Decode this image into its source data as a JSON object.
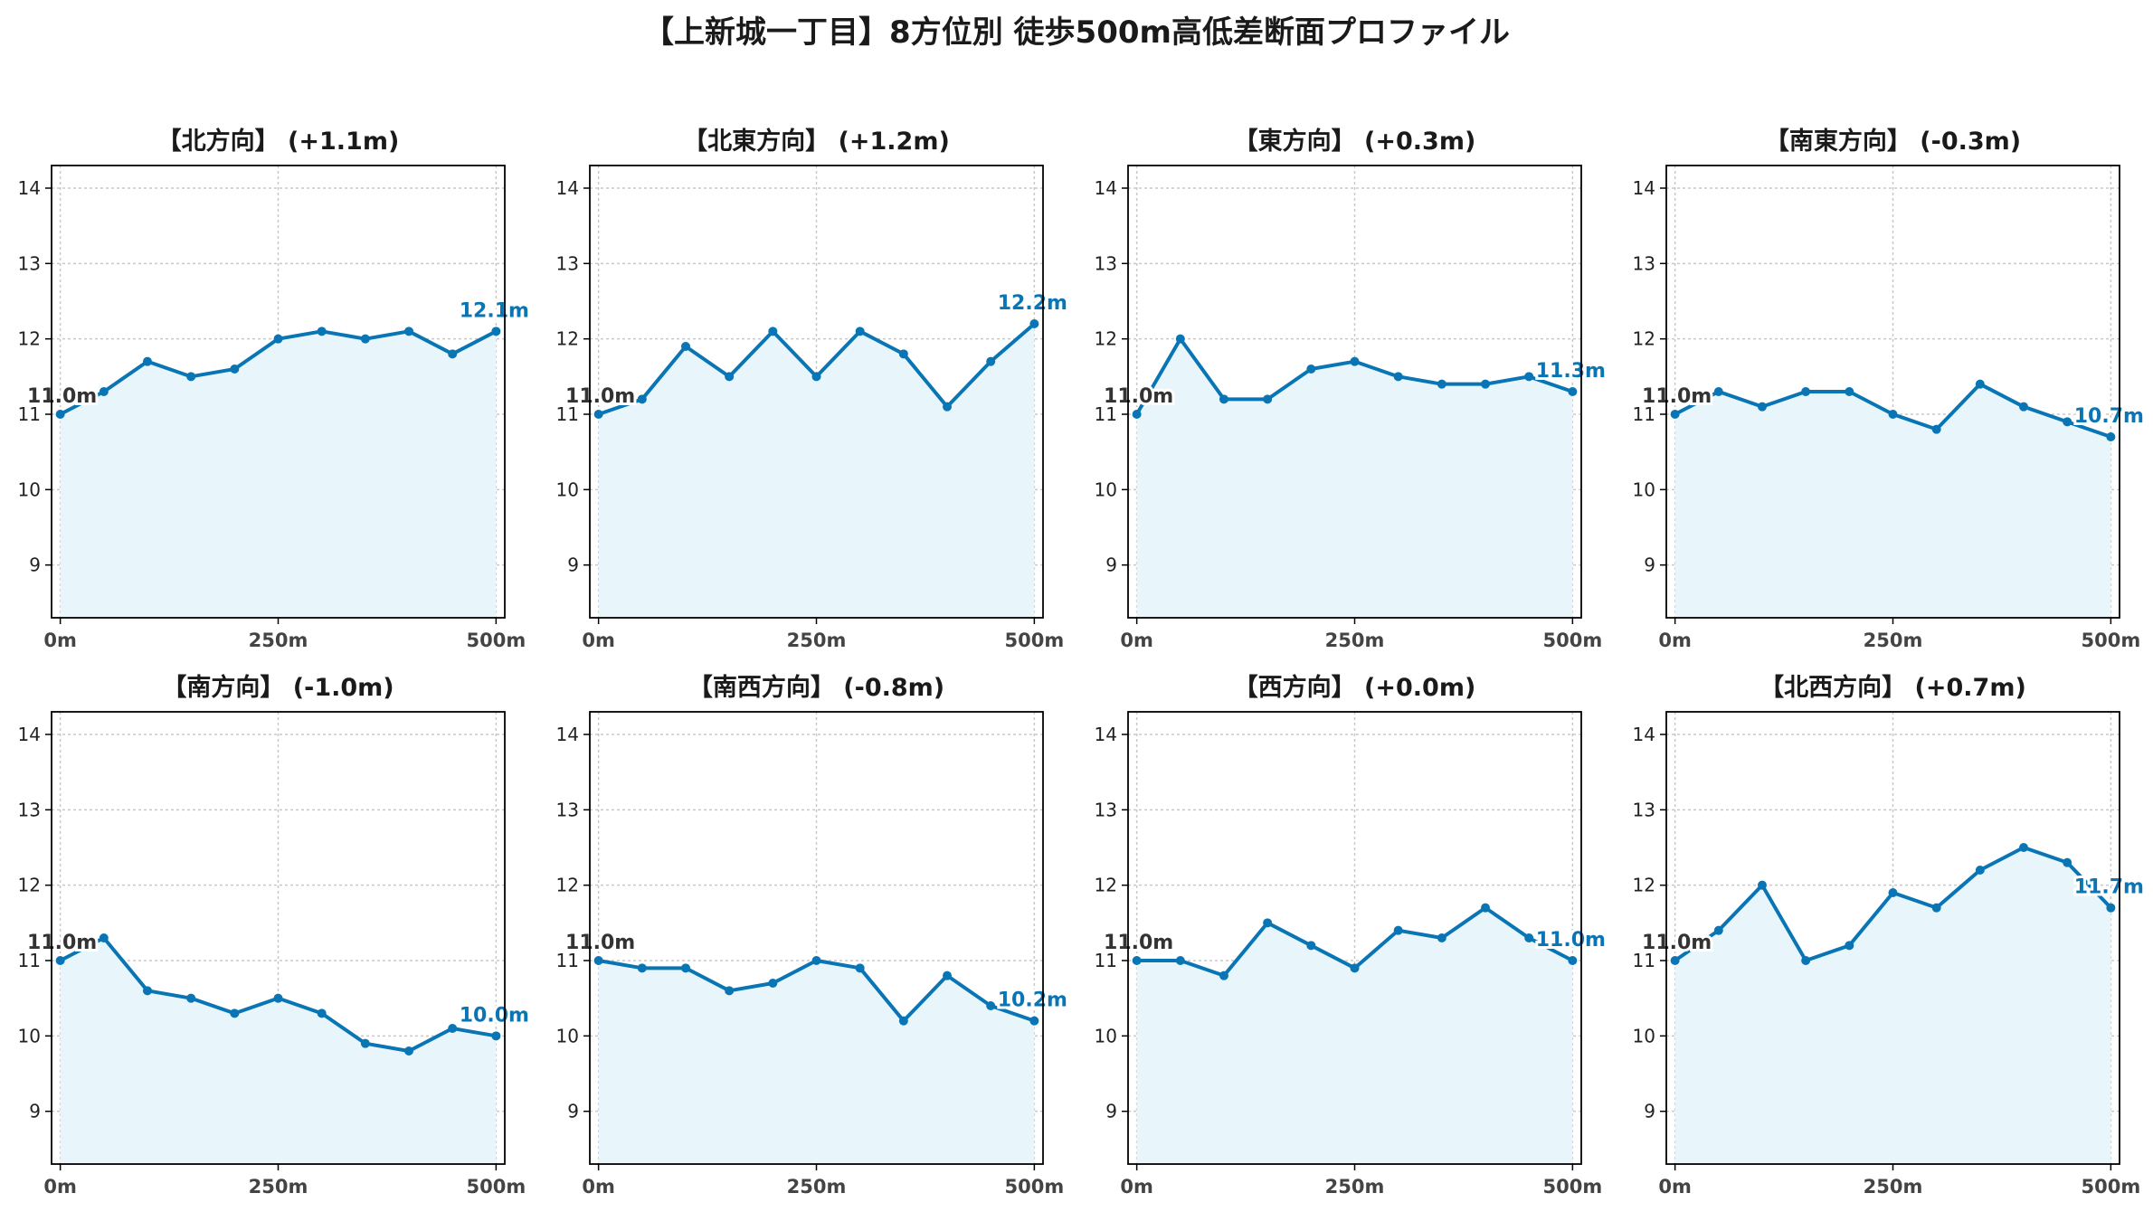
{
  "title": "【上新城一丁目】8方位別 徒歩500m高低差断面プロファイル",
  "colors": {
    "line": "#0a75b5",
    "fill": "#e8f6fc",
    "start_label": "#333333",
    "end_label": "#0a75b5",
    "grid": "#c8c8c8",
    "axis": "#000000"
  },
  "chart_data": [
    {
      "type": "line",
      "title": "【北方向】 (+1.1m)",
      "x": [
        0,
        50,
        100,
        150,
        200,
        250,
        300,
        350,
        400,
        450,
        500
      ],
      "values": [
        11.0,
        11.3,
        11.7,
        11.5,
        11.6,
        12.0,
        12.1,
        12.0,
        12.1,
        11.8,
        12.1
      ],
      "start_label": "11.0m",
      "end_label": "12.1m"
    },
    {
      "type": "line",
      "title": "【北東方向】 (+1.2m)",
      "x": [
        0,
        50,
        100,
        150,
        200,
        250,
        300,
        350,
        400,
        450,
        500
      ],
      "values": [
        11.0,
        11.2,
        11.9,
        11.5,
        12.1,
        11.5,
        12.1,
        11.8,
        11.1,
        11.7,
        12.2
      ],
      "start_label": "11.0m",
      "end_label": "12.2m"
    },
    {
      "type": "line",
      "title": "【東方向】 (+0.3m)",
      "x": [
        0,
        50,
        100,
        150,
        200,
        250,
        300,
        350,
        400,
        450,
        500
      ],
      "values": [
        11.0,
        12.0,
        11.2,
        11.2,
        11.6,
        11.7,
        11.5,
        11.4,
        11.4,
        11.5,
        11.3
      ],
      "start_label": "11.0m",
      "end_label": "11.3m"
    },
    {
      "type": "line",
      "title": "【南東方向】 (-0.3m)",
      "x": [
        0,
        50,
        100,
        150,
        200,
        250,
        300,
        350,
        400,
        450,
        500
      ],
      "values": [
        11.0,
        11.3,
        11.1,
        11.3,
        11.3,
        11.0,
        10.8,
        11.4,
        11.1,
        10.9,
        10.7
      ],
      "start_label": "11.0m",
      "end_label": "10.7m"
    },
    {
      "type": "line",
      "title": "【南方向】 (-1.0m)",
      "x": [
        0,
        50,
        100,
        150,
        200,
        250,
        300,
        350,
        400,
        450,
        500
      ],
      "values": [
        11.0,
        11.3,
        10.6,
        10.5,
        10.3,
        10.5,
        10.3,
        9.9,
        9.8,
        10.1,
        10.0
      ],
      "start_label": "11.0m",
      "end_label": "10.0m"
    },
    {
      "type": "line",
      "title": "【南西方向】 (-0.8m)",
      "x": [
        0,
        50,
        100,
        150,
        200,
        250,
        300,
        350,
        400,
        450,
        500
      ],
      "values": [
        11.0,
        10.9,
        10.9,
        10.6,
        10.7,
        11.0,
        10.9,
        10.2,
        10.8,
        10.4,
        10.2
      ],
      "start_label": "11.0m",
      "end_label": "10.2m"
    },
    {
      "type": "line",
      "title": "【西方向】 (+0.0m)",
      "x": [
        0,
        50,
        100,
        150,
        200,
        250,
        300,
        350,
        400,
        450,
        500
      ],
      "values": [
        11.0,
        11.0,
        10.8,
        11.5,
        11.2,
        10.9,
        11.4,
        11.3,
        11.7,
        11.3,
        11.0
      ],
      "start_label": "11.0m",
      "end_label": "11.0m"
    },
    {
      "type": "line",
      "title": "【北西方向】 (+0.7m)",
      "x": [
        0,
        50,
        100,
        150,
        200,
        250,
        300,
        350,
        400,
        450,
        500
      ],
      "values": [
        11.0,
        11.4,
        12.0,
        11.0,
        11.2,
        11.9,
        11.7,
        12.2,
        12.5,
        12.3,
        11.7
      ],
      "start_label": "11.0m",
      "end_label": "11.7m"
    }
  ],
  "axes": {
    "ylim": [
      8.3,
      14.3
    ],
    "yticks": [
      9,
      10,
      11,
      12,
      13,
      14
    ],
    "xlim": [
      -10,
      510
    ],
    "xticks": [
      0,
      250,
      500
    ],
    "xtick_labels": [
      "0m",
      "250m",
      "500m"
    ],
    "grid": true
  }
}
